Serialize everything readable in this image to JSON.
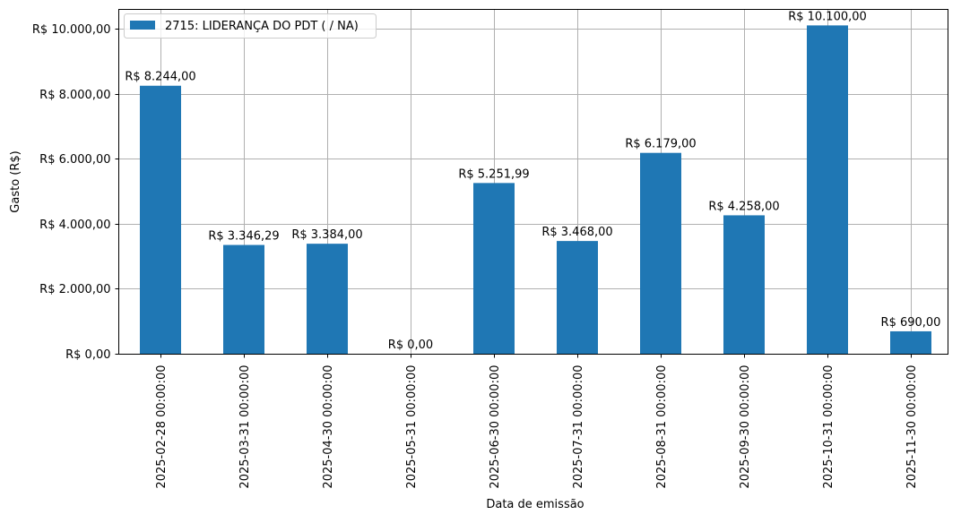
{
  "chart_data": {
    "type": "bar",
    "title": "",
    "xlabel": "Data de emissão",
    "ylabel": "Gasto (R$)",
    "ylim": [
      0,
      10600
    ],
    "grid": true,
    "legend_position": "upper left",
    "categories": [
      "2025-02-28 00:00:00",
      "2025-03-31 00:00:00",
      "2025-04-30 00:00:00",
      "2025-05-31 00:00:00",
      "2025-06-30 00:00:00",
      "2025-07-31 00:00:00",
      "2025-08-31 00:00:00",
      "2025-09-30 00:00:00",
      "2025-10-31 00:00:00",
      "2025-11-30 00:00:00"
    ],
    "series": [
      {
        "name": "2715: LIDERANÇA DO PDT ( / NA)",
        "color": "#1f77b4",
        "values": [
          8244.0,
          3346.29,
          3384.0,
          0.0,
          5251.99,
          3468.0,
          6179.0,
          4258.0,
          10100.0,
          690.0
        ],
        "data_labels": [
          "R$ 8.244,00",
          "R$ 3.346,29",
          "R$ 3.384,00",
          "R$ 0,00",
          "R$ 5.251,99",
          "R$ 3.468,00",
          "R$ 6.179,00",
          "R$ 4.258,00",
          "R$ 10.100,00",
          "R$ 690,00"
        ]
      }
    ],
    "yticks": [
      0,
      2000,
      4000,
      6000,
      8000,
      10000
    ],
    "ytick_labels": [
      "R$ 0,00",
      "R$ 2.000,00",
      "R$ 4.000,00",
      "R$ 6.000,00",
      "R$ 8.000,00",
      "R$ 10.000,00"
    ]
  },
  "colors": {
    "bar": "#1f77b4",
    "grid": "#b0b0b0",
    "axis": "#000000",
    "legend_border": "#cccccc"
  }
}
